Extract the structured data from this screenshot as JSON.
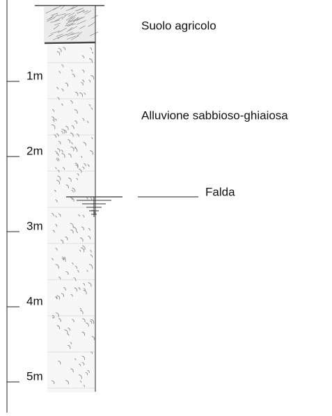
{
  "depth_labels": [
    "1m",
    "2m",
    "3m",
    "4m",
    "5m"
  ],
  "layers": [
    {
      "label": "Suolo agricolo"
    },
    {
      "label": "Alluvione sabbioso-ghiaiosa"
    }
  ],
  "water_table": {
    "label": "Falda"
  }
}
